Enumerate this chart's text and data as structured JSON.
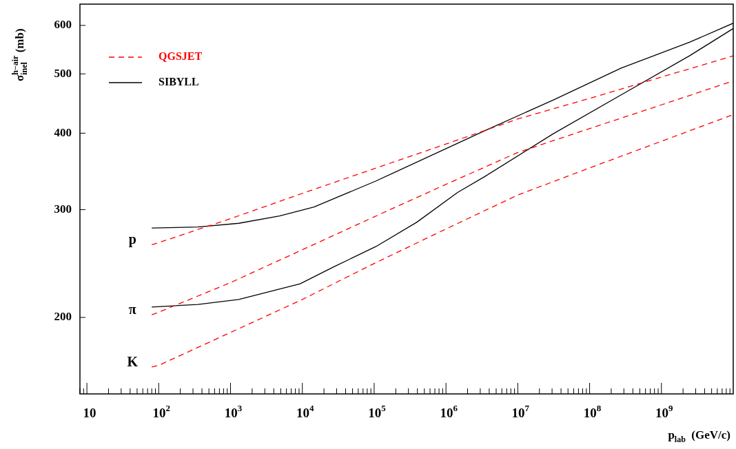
{
  "chart_data": {
    "type": "line",
    "xlabel": "p$_{lab}$  (GeV/c)",
    "ylabel": "σ$^{h−air}$$_{inel}$ (mb)",
    "log": "xy",
    "marker": "none",
    "legend": "top left",
    "xlim": [
      8,
      10000000000.0
    ],
    "ylim": [
      150,
      650
    ],
    "xticks": [
      {
        "value": 8,
        "label": null
      },
      {
        "value": 9,
        "label": null
      },
      10,
      {
        "value": 20,
        "label": null
      },
      {
        "value": 30,
        "label": null
      },
      {
        "value": 40,
        "label": null
      },
      {
        "value": 50,
        "label": null
      },
      {
        "value": 60,
        "label": null
      },
      {
        "value": 70,
        "label": null
      },
      {
        "value": 80,
        "label": null
      },
      {
        "value": 90,
        "label": null
      },
      {
        "value": 100,
        "label": "10$^{2}$"
      },
      {
        "value": 200,
        "label": null
      },
      {
        "value": 300,
        "label": null
      },
      {
        "value": 400,
        "label": null
      },
      {
        "value": 500,
        "label": null
      },
      {
        "value": 600,
        "label": null
      },
      {
        "value": 700,
        "label": null
      },
      {
        "value": 800,
        "label": null
      },
      {
        "value": 900,
        "label": null
      },
      {
        "value": 1000.0,
        "label": "10$^{3}$"
      },
      {
        "value": 2000.0,
        "label": null
      },
      {
        "value": 3000.0,
        "label": null
      },
      {
        "value": 4000.0,
        "label": null
      },
      {
        "value": 5000.0,
        "label": null
      },
      {
        "value": 6000.0,
        "label": null
      },
      {
        "value": 7000.0,
        "label": null
      },
      {
        "value": 8000.0,
        "label": null
      },
      {
        "value": 9000.0,
        "label": null
      },
      {
        "value": 10000.0,
        "label": "10$^{4}$"
      },
      {
        "value": 20000.0,
        "label": null
      },
      {
        "value": 30000.0,
        "label": null
      },
      {
        "value": 40000.0,
        "label": null
      },
      {
        "value": 50000.0,
        "label": null
      },
      {
        "value": 60000.0,
        "label": null
      },
      {
        "value": 70000.0,
        "label": null
      },
      {
        "value": 80000.0,
        "label": null
      },
      {
        "value": 90000.0,
        "label": null
      },
      {
        "value": 100000.0,
        "label": "10$^{5}$"
      },
      {
        "value": 200000.0,
        "label": null
      },
      {
        "value": 300000.0,
        "label": null
      },
      {
        "value": 400000.0,
        "label": null
      },
      {
        "value": 500000.0,
        "label": null
      },
      {
        "value": 600000.0,
        "label": null
      },
      {
        "value": 700000.0,
        "label": null
      },
      {
        "value": 800000.0,
        "label": null
      },
      {
        "value": 900000.0,
        "label": null
      },
      {
        "value": 1000000.0,
        "label": "10$^{6}$"
      },
      {
        "value": 2000000.0,
        "label": null
      },
      {
        "value": 3000000.0,
        "label": null
      },
      {
        "value": 4000000.0,
        "label": null
      },
      {
        "value": 5000000.0,
        "label": null
      },
      {
        "value": 6000000.0,
        "label": null
      },
      {
        "value": 7000000.0,
        "label": null
      },
      {
        "value": 8000000.0,
        "label": null
      },
      {
        "value": 9000000.0,
        "label": null
      },
      {
        "value": 10000000.0,
        "label": "10$^{7}$"
      },
      {
        "value": 20000000.0,
        "label": null
      },
      {
        "value": 30000000.0,
        "label": null
      },
      {
        "value": 40000000.0,
        "label": null
      },
      {
        "value": 50000000.0,
        "label": null
      },
      {
        "value": 60000000.0,
        "label": null
      },
      {
        "value": 70000000.0,
        "label": null
      },
      {
        "value": 80000000.0,
        "label": null
      },
      {
        "value": 90000000.0,
        "label": null
      },
      {
        "value": 100000000.0,
        "label": "10$^{8}$"
      },
      {
        "value": 200000000.0,
        "label": null
      },
      {
        "value": 300000000.0,
        "label": null
      },
      {
        "value": 400000000.0,
        "label": null
      },
      {
        "value": 500000000.0,
        "label": null
      },
      {
        "value": 600000000.0,
        "label": null
      },
      {
        "value": 700000000.0,
        "label": null
      },
      {
        "value": 800000000.0,
        "label": null
      },
      {
        "value": 900000000.0,
        "label": null
      },
      {
        "value": 1000000000.0,
        "label": "10$^{9}$"
      },
      {
        "value": 2000000000.0,
        "label": null
      },
      {
        "value": 3000000000.0,
        "label": null
      },
      {
        "value": 4000000000.0,
        "label": null
      },
      {
        "value": 5000000000.0,
        "label": null
      },
      {
        "value": 6000000000.0,
        "label": null
      },
      {
        "value": 7000000000.0,
        "label": null
      },
      {
        "value": 8000000000.0,
        "label": null
      },
      {
        "value": 9000000000.0,
        "label": null
      }
    ],
    "yticks": [
      200,
      300,
      400,
      500,
      600
    ],
    "series": [
      {
        "name": "QGSJET",
        "color": "#ff0000",
        "line_style": "dashed",
        "x": [
          80,
          100,
          1000.0,
          10000.0,
          100000.0,
          1000000.0,
          10000000.0,
          100000000.0,
          1000000000.0,
          10000000000.0
        ],
        "values": [
          263,
          265,
          290,
          319,
          350,
          384,
          422,
          456,
          494,
          535
        ]
      },
      {
        "color": "#ff0000",
        "line_style": "dashed",
        "x": [
          80,
          100,
          1000.0,
          10000.0,
          100000.0,
          1000000.0,
          10000000.0,
          100000000.0,
          1000000000.0,
          10000000000.0
        ],
        "values": [
          202,
          204,
          228,
          258,
          292,
          330,
          372,
          407,
          445,
          487
        ]
      },
      {
        "color": "#ff0000",
        "line_style": "dashed",
        "x": [
          80,
          100,
          1000.0,
          10000.0,
          100000.0,
          1000000.0,
          10000000.0,
          100000000.0,
          1000000000.0,
          10000000000.0
        ],
        "values": [
          166,
          167,
          189,
          214,
          245,
          279,
          317,
          351,
          388,
          429
        ]
      },
      {
        "name": "SIBYLL",
        "color": "#000000",
        "line_style": "solid",
        "x": [
          80,
          350,
          1300,
          4800,
          14500,
          105000,
          930000,
          3500000,
          31000000,
          275000000,
          2450000000,
          10000000000.0
        ],
        "values": [
          280,
          281,
          285,
          293,
          303,
          334,
          376,
          404,
          453,
          511,
          563,
          605
        ]
      },
      {
        "color": "#000000",
        "line_style": "solid",
        "x": [
          80,
          350,
          1300,
          9300,
          27500,
          105000,
          390000,
          1450000,
          3500000,
          31000000,
          275000000,
          2450000000,
          10000000000.0
        ],
        "values": [
          208,
          210,
          214,
          227,
          242,
          261,
          286,
          320,
          340,
          399,
          462,
          535,
          593
        ]
      }
    ],
    "annotations": [
      "p",
      "π",
      "K"
    ]
  }
}
